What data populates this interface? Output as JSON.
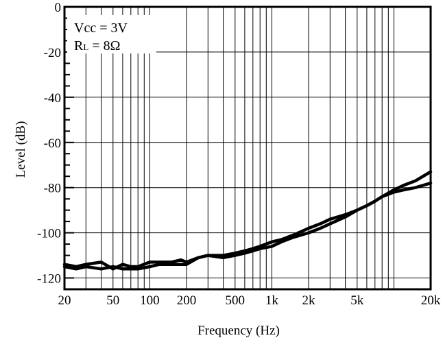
{
  "chart_data": {
    "type": "line",
    "xlabel": "Frequency (Hz)",
    "ylabel": "Level (dB)",
    "x_scale": "log",
    "xlim": [
      20,
      20000
    ],
    "ylim": [
      -125,
      0
    ],
    "grid": true,
    "x_ticks": [
      {
        "value": 20,
        "label": "20"
      },
      {
        "value": 50,
        "label": "50"
      },
      {
        "value": 100,
        "label": "100"
      },
      {
        "value": 200,
        "label": "200"
      },
      {
        "value": 500,
        "label": "500"
      },
      {
        "value": 1000,
        "label": "1k"
      },
      {
        "value": 2000,
        "label": "2k"
      },
      {
        "value": 5000,
        "label": "5k"
      },
      {
        "value": 20000,
        "label": "20k"
      }
    ],
    "y_ticks": [
      {
        "value": 0,
        "label": "0"
      },
      {
        "value": -20,
        "label": "-20"
      },
      {
        "value": -40,
        "label": "-40"
      },
      {
        "value": -60,
        "label": "-60"
      },
      {
        "value": -80,
        "label": "-80"
      },
      {
        "value": -100,
        "label": "-100"
      },
      {
        "value": -120,
        "label": "-120"
      }
    ],
    "annotations": {
      "vcc": "Vcc = 3V",
      "rl_prefix": "R",
      "rl_sub": "L",
      "rl_suffix": " = 8Ω"
    },
    "series": [
      {
        "x": [
          20,
          25,
          30,
          40,
          50,
          60,
          70,
          80,
          100,
          120,
          150,
          180,
          200,
          250,
          300,
          400,
          500,
          600,
          700,
          800,
          1000,
          1200,
          1500,
          2000,
          2500,
          3000,
          4000,
          5000,
          6000,
          7000,
          8000,
          10000,
          12000,
          15000,
          20000
        ],
        "y": [
          -114,
          -115,
          -114,
          -113,
          -116,
          -114,
          -115,
          -115,
          -113,
          -113,
          -113,
          -112,
          -113,
          -111,
          -110,
          -110,
          -109,
          -108,
          -107,
          -106,
          -104,
          -103,
          -101,
          -98,
          -96,
          -94,
          -92,
          -90,
          -88,
          -86,
          -84,
          -82,
          -81,
          -80,
          -78
        ]
      },
      {
        "x": [
          20,
          25,
          30,
          40,
          50,
          60,
          70,
          80,
          100,
          120,
          150,
          180,
          200,
          250,
          300,
          400,
          500,
          600,
          700,
          800,
          1000,
          1200,
          1500,
          2000,
          2500,
          3000,
          4000,
          5000,
          6000,
          7000,
          8000,
          10000,
          12000,
          15000,
          20000
        ],
        "y": [
          -115,
          -116,
          -115,
          -116,
          -115,
          -116,
          -116,
          -116,
          -115,
          -114,
          -114,
          -114,
          -114,
          -111,
          -110,
          -111,
          -110,
          -109,
          -108,
          -107,
          -106,
          -104,
          -102,
          -100,
          -98,
          -96,
          -93,
          -90,
          -88,
          -86,
          -84,
          -81,
          -79,
          -77,
          -73
        ]
      }
    ]
  }
}
